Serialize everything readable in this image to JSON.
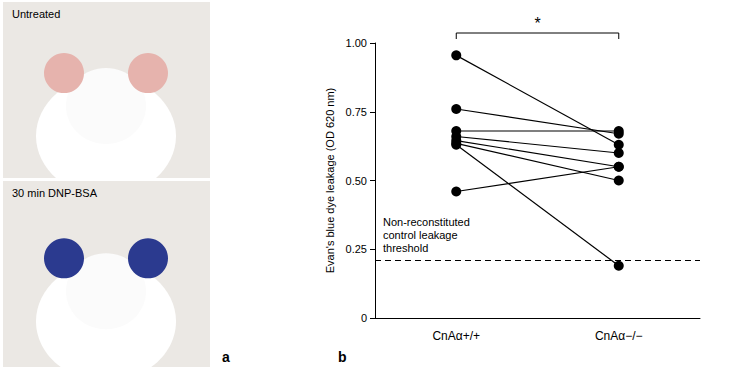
{
  "chart_data": {
    "type": "line",
    "categories": [
      "CnAα+/+",
      "CnAα−/−"
    ],
    "y_label": "Evan's blue dye leakage (OD 620 nm)",
    "ylim": [
      0,
      1
    ],
    "yticks": [
      0,
      0.25,
      {
        "value": 0.5,
        "label": "0.50"
      },
      0.75,
      {
        "value": 1,
        "label": "1.00"
      }
    ],
    "grid": false,
    "marker": "circle",
    "color": "#000000",
    "series": [
      {
        "values": [
          0.955,
          0.63
        ]
      },
      {
        "values": [
          0.76,
          0.67
        ]
      },
      {
        "values": [
          0.68,
          0.68
        ]
      },
      {
        "values": [
          0.66,
          0.6
        ]
      },
      {
        "values": [
          0.645,
          0.55
        ]
      },
      {
        "values": [
          0.635,
          0.5
        ]
      },
      {
        "values": [
          0.63,
          0.19
        ]
      },
      {
        "values": [
          0.46,
          0.55
        ]
      }
    ],
    "threshold": {
      "value": 0.215,
      "label": "Non-reconstituted\ncontrol leakage\nthreshold",
      "line_style": "dashed"
    },
    "significance": {
      "label": "*",
      "between": [
        0,
        1
      ]
    },
    "panel_labels": [
      "a",
      "b"
    ],
    "photo_captions": [
      "Untreated",
      "30 min DNP-BSA"
    ]
  }
}
